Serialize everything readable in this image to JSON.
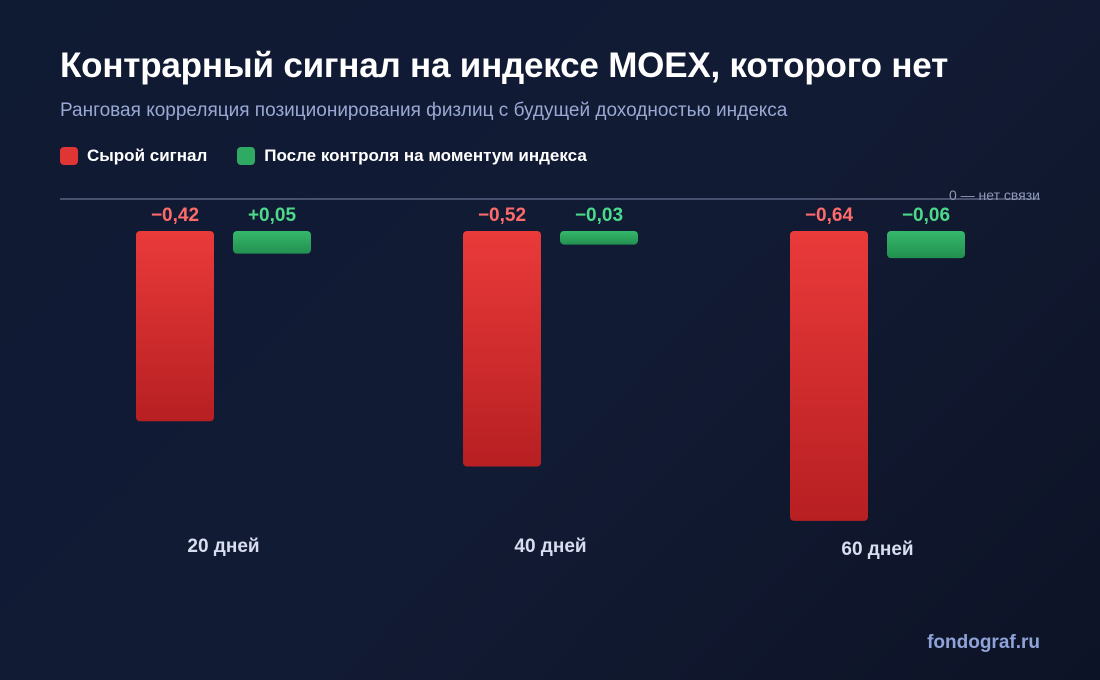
{
  "title": "Контрарный сигнал на индексе MOEX, которого нет",
  "subtitle": "Ранговая корреляция позиционирования физлиц с будущей доходностью индекса",
  "footer": "fondograf.ru",
  "zero_label": "0 — нет связи",
  "colors": {
    "raw": "#e03535",
    "controlled": "#2eaa62",
    "raw_label": "#ff6b6b",
    "controlled_label": "#4cd98a"
  },
  "chart_data": {
    "type": "bar",
    "title": "Контрарный сигнал на индексе MOEX, которого нет",
    "subtitle": "Ранговая корреляция позиционирования физлиц с будущей доходностью индекса",
    "categories": [
      "20 дней",
      "40 дней",
      "60 дней"
    ],
    "series": [
      {
        "name": "Сырой сигнал",
        "values": [
          -0.42,
          -0.52,
          -0.64
        ],
        "labels": [
          "−0,42",
          "−0,52",
          "−0,64"
        ]
      },
      {
        "name": "После контроля на моментум индекса",
        "values": [
          0.05,
          -0.03,
          -0.06
        ],
        "labels": [
          "+0,05",
          "−0,03",
          "−0,06"
        ]
      }
    ],
    "annotation": "0 — нет связи",
    "legend": "top-left",
    "grid": false
  }
}
